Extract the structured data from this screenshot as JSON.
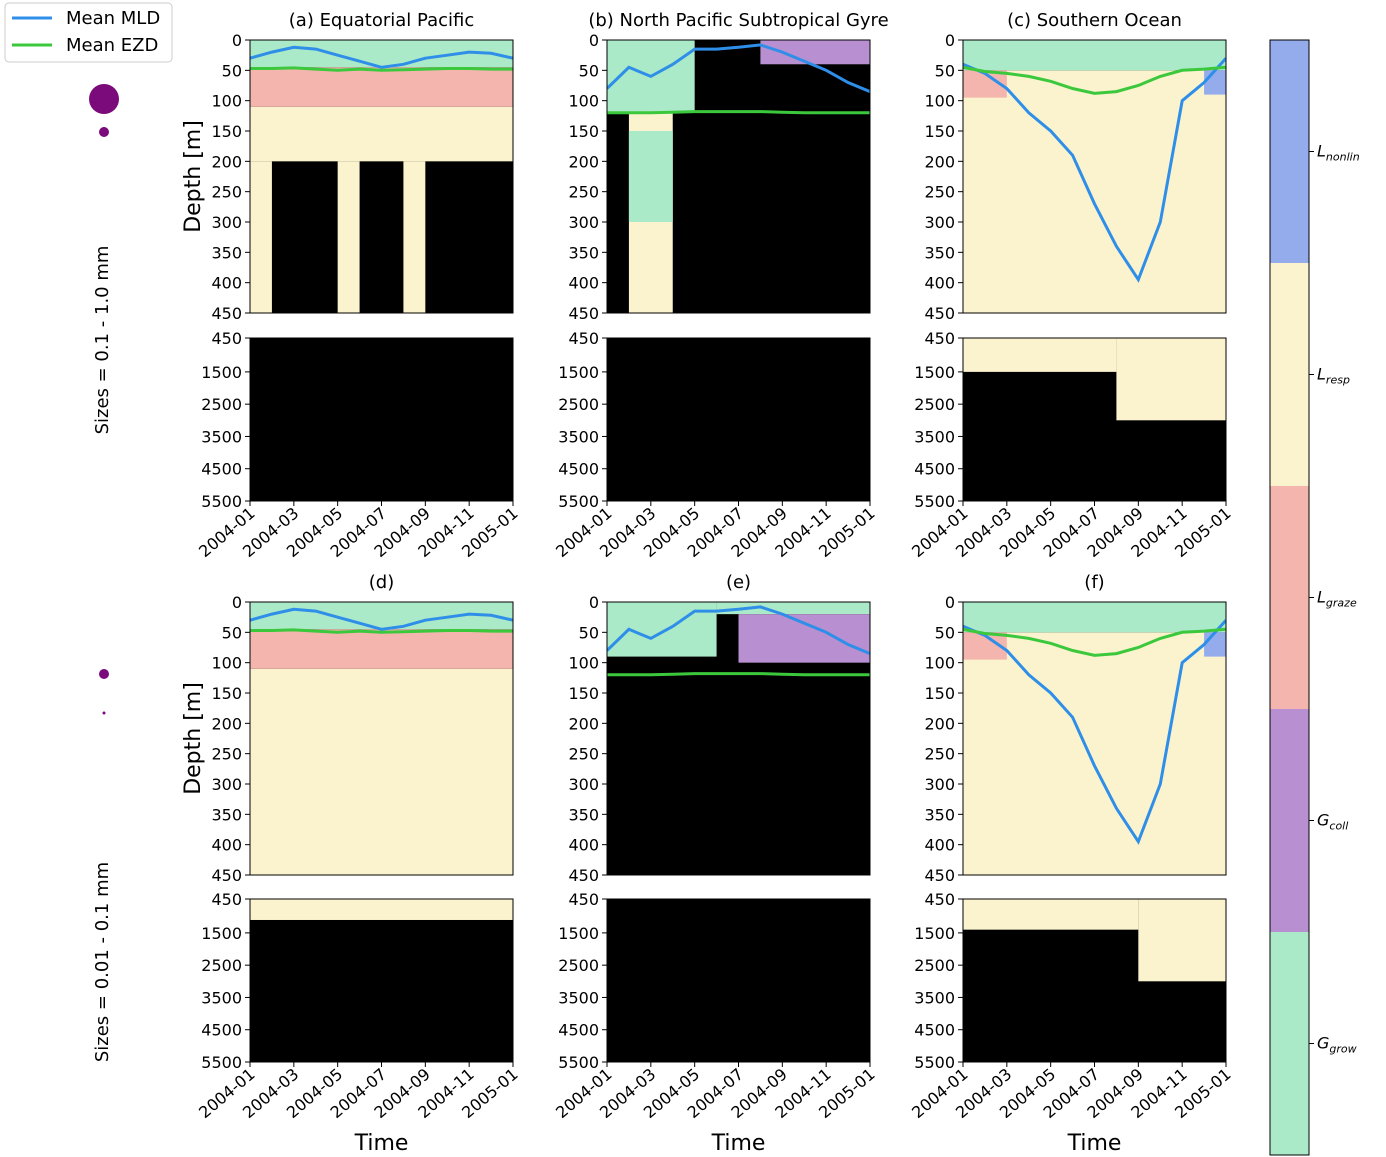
{
  "legend": [
    {
      "name": "Mean MLD",
      "color": "#2f8fe8"
    },
    {
      "name": "Mean EZD",
      "color": "#3cc83c"
    }
  ],
  "row_labels": [
    "Sizes = 0.1 - 1.0 mm",
    "Sizes = 0.01 - 0.1 mm"
  ],
  "colorbar": [
    {
      "base": "L",
      "sub": "nonlin",
      "color": "#94acec"
    },
    {
      "base": "L",
      "sub": "resp",
      "color": "#fbf3cd"
    },
    {
      "base": "L",
      "sub": "graze",
      "color": "#f4b5ae"
    },
    {
      "base": "G",
      "sub": "coll",
      "color": "#b88fd0"
    },
    {
      "base": "G",
      "sub": "grow",
      "color": "#abeac9"
    }
  ],
  "chart_data": [
    {
      "type": "heatmap",
      "title": "(a) Equatorial Pacific",
      "ylabel": "Depth [m]",
      "ylim": [
        0,
        450
      ],
      "yticks": [
        0,
        50,
        100,
        150,
        200,
        250,
        300,
        350,
        400,
        450
      ],
      "layers": [
        {
          "c": 1,
          "x": [
            "2004-01",
            "2005-01"
          ],
          "y": [
            110,
            200
          ]
        },
        {
          "c": 1,
          "x": [
            "2004-01",
            "2004-02"
          ],
          "y": [
            200,
            450
          ]
        },
        {
          "c": 1,
          "x": [
            "2004-05",
            "2004-06"
          ],
          "y": [
            200,
            450
          ]
        },
        {
          "c": 1,
          "x": [
            "2004-08",
            "2004-09"
          ],
          "y": [
            200,
            450
          ]
        },
        {
          "c": 4,
          "x": [
            "2004-01",
            "2005-01"
          ],
          "y": [
            0,
            45
          ]
        },
        {
          "c": 2,
          "x": [
            "2004-01",
            "2005-01"
          ],
          "y": [
            45,
            110
          ]
        }
      ],
      "x": [
        "2004-01",
        "2004-02",
        "2004-03",
        "2004-04",
        "2004-05",
        "2004-06",
        "2004-07",
        "2004-08",
        "2004-09",
        "2004-10",
        "2004-11",
        "2004-12",
        "2005-01"
      ],
      "series": [
        {
          "values": [
            30,
            20,
            12,
            15,
            25,
            35,
            45,
            40,
            30,
            25,
            20,
            22,
            30
          ]
        },
        {
          "values": [
            47,
            47,
            46,
            48,
            50,
            48,
            50,
            49,
            48,
            47,
            47,
            48,
            48
          ]
        }
      ]
    },
    {
      "type": "heatmap",
      "ylim": [
        450,
        5500
      ],
      "yticks": [
        450,
        1500,
        2500,
        3500,
        4500,
        5500
      ],
      "layers": [],
      "xticks": [
        "2004-01",
        "2004-03",
        "2004-05",
        "2004-07",
        "2004-09",
        "2004-11",
        "2005-01"
      ]
    },
    {
      "type": "heatmap",
      "title": "(b) North Pacific Subtropical Gyre",
      "ylim": [
        0,
        450
      ],
      "yticks": [
        0,
        50,
        100,
        150,
        200,
        250,
        300,
        350,
        400,
        450
      ],
      "layers": [
        {
          "c": 1,
          "x": [
            "2004-02",
            "2004-04"
          ],
          "y": [
            120,
            450
          ]
        },
        {
          "c": 4,
          "x": [
            "2004-02",
            "2004-04"
          ],
          "y": [
            150,
            300
          ]
        },
        {
          "c": 4,
          "x": [
            "2004-01",
            "2004-05"
          ],
          "y": [
            0,
            120
          ]
        },
        {
          "c": 3,
          "x": [
            "2004-08",
            "2005-01"
          ],
          "y": [
            0,
            40
          ]
        }
      ],
      "x": [
        "2004-01",
        "2004-02",
        "2004-03",
        "2004-04",
        "2004-05",
        "2004-06",
        "2004-07",
        "2004-08",
        "2004-09",
        "2004-10",
        "2004-11",
        "2004-12",
        "2005-01"
      ],
      "series": [
        {
          "values": [
            80,
            45,
            60,
            40,
            15,
            15,
            12,
            8,
            20,
            35,
            50,
            70,
            85
          ]
        },
        {
          "values": [
            120,
            120,
            120,
            119,
            118,
            118,
            118,
            118,
            119,
            120,
            120,
            120,
            120
          ]
        }
      ]
    },
    {
      "type": "heatmap",
      "ylim": [
        450,
        5500
      ],
      "yticks": [
        450,
        1500,
        2500,
        3500,
        4500,
        5500
      ],
      "layers": [],
      "xticks": [
        "2004-01",
        "2004-03",
        "2004-05",
        "2004-07",
        "2004-09",
        "2004-11",
        "2005-01"
      ]
    },
    {
      "type": "heatmap",
      "title": "(c) Southern Ocean",
      "ylim": [
        0,
        450
      ],
      "yticks": [
        0,
        50,
        100,
        150,
        200,
        250,
        300,
        350,
        400,
        450
      ],
      "layers": [
        {
          "c": 1,
          "x": [
            "2004-01",
            "2005-01"
          ],
          "y": [
            50,
            450
          ]
        },
        {
          "c": 4,
          "x": [
            "2004-01",
            "2005-01"
          ],
          "y": [
            0,
            50
          ]
        },
        {
          "c": 2,
          "x": [
            "2004-01",
            "2004-03"
          ],
          "y": [
            50,
            95
          ]
        },
        {
          "c": 0,
          "x": [
            "2004-12",
            "2005-01"
          ],
          "y": [
            50,
            90
          ]
        }
      ],
      "x": [
        "2004-01",
        "2004-02",
        "2004-03",
        "2004-04",
        "2004-05",
        "2004-06",
        "2004-07",
        "2004-08",
        "2004-09",
        "2004-10",
        "2004-11",
        "2004-12",
        "2005-01"
      ],
      "series": [
        {
          "values": [
            40,
            55,
            80,
            120,
            150,
            190,
            270,
            340,
            395,
            300,
            100,
            70,
            30
          ]
        },
        {
          "values": [
            45,
            52,
            55,
            60,
            68,
            80,
            88,
            85,
            75,
            60,
            50,
            48,
            45
          ]
        }
      ]
    },
    {
      "type": "heatmap",
      "ylim": [
        450,
        5500
      ],
      "yticks": [
        450,
        1500,
        2500,
        3500,
        4500,
        5500
      ],
      "layers": [
        {
          "c": 1,
          "x": [
            "2004-01",
            "2004-08"
          ],
          "y": [
            450,
            1500
          ]
        },
        {
          "c": 1,
          "x": [
            "2004-08",
            "2005-01"
          ],
          "y": [
            450,
            3000
          ]
        }
      ],
      "xticks": [
        "2004-01",
        "2004-03",
        "2004-05",
        "2004-07",
        "2004-09",
        "2004-11",
        "2005-01"
      ]
    },
    {
      "type": "heatmap",
      "title": "(d)",
      "ylabel": "Depth [m]",
      "ylim": [
        0,
        450
      ],
      "yticks": [
        0,
        50,
        100,
        150,
        200,
        250,
        300,
        350,
        400,
        450
      ],
      "layers": [
        {
          "c": 1,
          "x": [
            "2004-01",
            "2005-01"
          ],
          "y": [
            110,
            450
          ]
        },
        {
          "c": 4,
          "x": [
            "2004-01",
            "2005-01"
          ],
          "y": [
            0,
            45
          ]
        },
        {
          "c": 2,
          "x": [
            "2004-01",
            "2005-01"
          ],
          "y": [
            45,
            110
          ]
        }
      ],
      "x": [
        "2004-01",
        "2004-02",
        "2004-03",
        "2004-04",
        "2004-05",
        "2004-06",
        "2004-07",
        "2004-08",
        "2004-09",
        "2004-10",
        "2004-11",
        "2004-12",
        "2005-01"
      ],
      "series": [
        {
          "values": [
            30,
            20,
            12,
            15,
            25,
            35,
            45,
            40,
            30,
            25,
            20,
            22,
            30
          ]
        },
        {
          "values": [
            47,
            47,
            46,
            48,
            50,
            48,
            50,
            49,
            48,
            47,
            47,
            48,
            48
          ]
        }
      ]
    },
    {
      "type": "heatmap",
      "ylim": [
        450,
        5500
      ],
      "yticks": [
        450,
        1500,
        2500,
        3500,
        4500,
        5500
      ],
      "layers": [
        {
          "c": 1,
          "x": [
            "2004-01",
            "2005-01"
          ],
          "y": [
            450,
            1100
          ]
        }
      ],
      "xticks": [
        "2004-01",
        "2004-03",
        "2004-05",
        "2004-07",
        "2004-09",
        "2004-11",
        "2005-01"
      ],
      "xlabel": "Time"
    },
    {
      "type": "heatmap",
      "title": "(e)",
      "ylim": [
        0,
        450
      ],
      "yticks": [
        0,
        50,
        100,
        150,
        200,
        250,
        300,
        350,
        400,
        450
      ],
      "layers": [
        {
          "c": 4,
          "x": [
            "2004-01",
            "2004-06"
          ],
          "y": [
            0,
            90
          ]
        },
        {
          "c": 4,
          "x": [
            "2004-06",
            "2005-01"
          ],
          "y": [
            0,
            20
          ]
        },
        {
          "c": 3,
          "x": [
            "2004-07",
            "2005-01"
          ],
          "y": [
            20,
            100
          ]
        }
      ],
      "x": [
        "2004-01",
        "2004-02",
        "2004-03",
        "2004-04",
        "2004-05",
        "2004-06",
        "2004-07",
        "2004-08",
        "2004-09",
        "2004-10",
        "2004-11",
        "2004-12",
        "2005-01"
      ],
      "series": [
        {
          "values": [
            80,
            45,
            60,
            40,
            15,
            15,
            12,
            8,
            20,
            35,
            50,
            70,
            85
          ]
        },
        {
          "values": [
            120,
            120,
            120,
            119,
            118,
            118,
            118,
            118,
            119,
            120,
            120,
            120,
            120
          ]
        }
      ]
    },
    {
      "type": "heatmap",
      "ylim": [
        450,
        5500
      ],
      "yticks": [
        450,
        1500,
        2500,
        3500,
        4500,
        5500
      ],
      "layers": [],
      "xticks": [
        "2004-01",
        "2004-03",
        "2004-05",
        "2004-07",
        "2004-09",
        "2004-11",
        "2005-01"
      ],
      "xlabel": "Time"
    },
    {
      "type": "heatmap",
      "title": "(f)",
      "ylim": [
        0,
        450
      ],
      "yticks": [
        0,
        50,
        100,
        150,
        200,
        250,
        300,
        350,
        400,
        450
      ],
      "layers": [
        {
          "c": 1,
          "x": [
            "2004-01",
            "2005-01"
          ],
          "y": [
            50,
            450
          ]
        },
        {
          "c": 4,
          "x": [
            "2004-01",
            "2005-01"
          ],
          "y": [
            0,
            50
          ]
        },
        {
          "c": 2,
          "x": [
            "2004-01",
            "2004-03"
          ],
          "y": [
            50,
            95
          ]
        },
        {
          "c": 0,
          "x": [
            "2004-12",
            "2005-01"
          ],
          "y": [
            50,
            90
          ]
        }
      ],
      "x": [
        "2004-01",
        "2004-02",
        "2004-03",
        "2004-04",
        "2004-05",
        "2004-06",
        "2004-07",
        "2004-08",
        "2004-09",
        "2004-10",
        "2004-11",
        "2004-12",
        "2005-01"
      ],
      "series": [
        {
          "values": [
            40,
            55,
            80,
            120,
            150,
            190,
            270,
            340,
            395,
            300,
            100,
            70,
            30
          ]
        },
        {
          "values": [
            45,
            52,
            55,
            60,
            68,
            80,
            88,
            85,
            75,
            60,
            50,
            48,
            45
          ]
        }
      ]
    },
    {
      "type": "heatmap",
      "ylim": [
        450,
        5500
      ],
      "yticks": [
        450,
        1500,
        2500,
        3500,
        4500,
        5500
      ],
      "layers": [
        {
          "c": 1,
          "x": [
            "2004-01",
            "2004-09"
          ],
          "y": [
            450,
            1400
          ]
        },
        {
          "c": 1,
          "x": [
            "2004-09",
            "2005-01"
          ],
          "y": [
            450,
            3000
          ]
        }
      ],
      "xticks": [
        "2004-01",
        "2004-03",
        "2004-05",
        "2004-07",
        "2004-09",
        "2004-11",
        "2005-01"
      ],
      "xlabel": "Time"
    }
  ]
}
